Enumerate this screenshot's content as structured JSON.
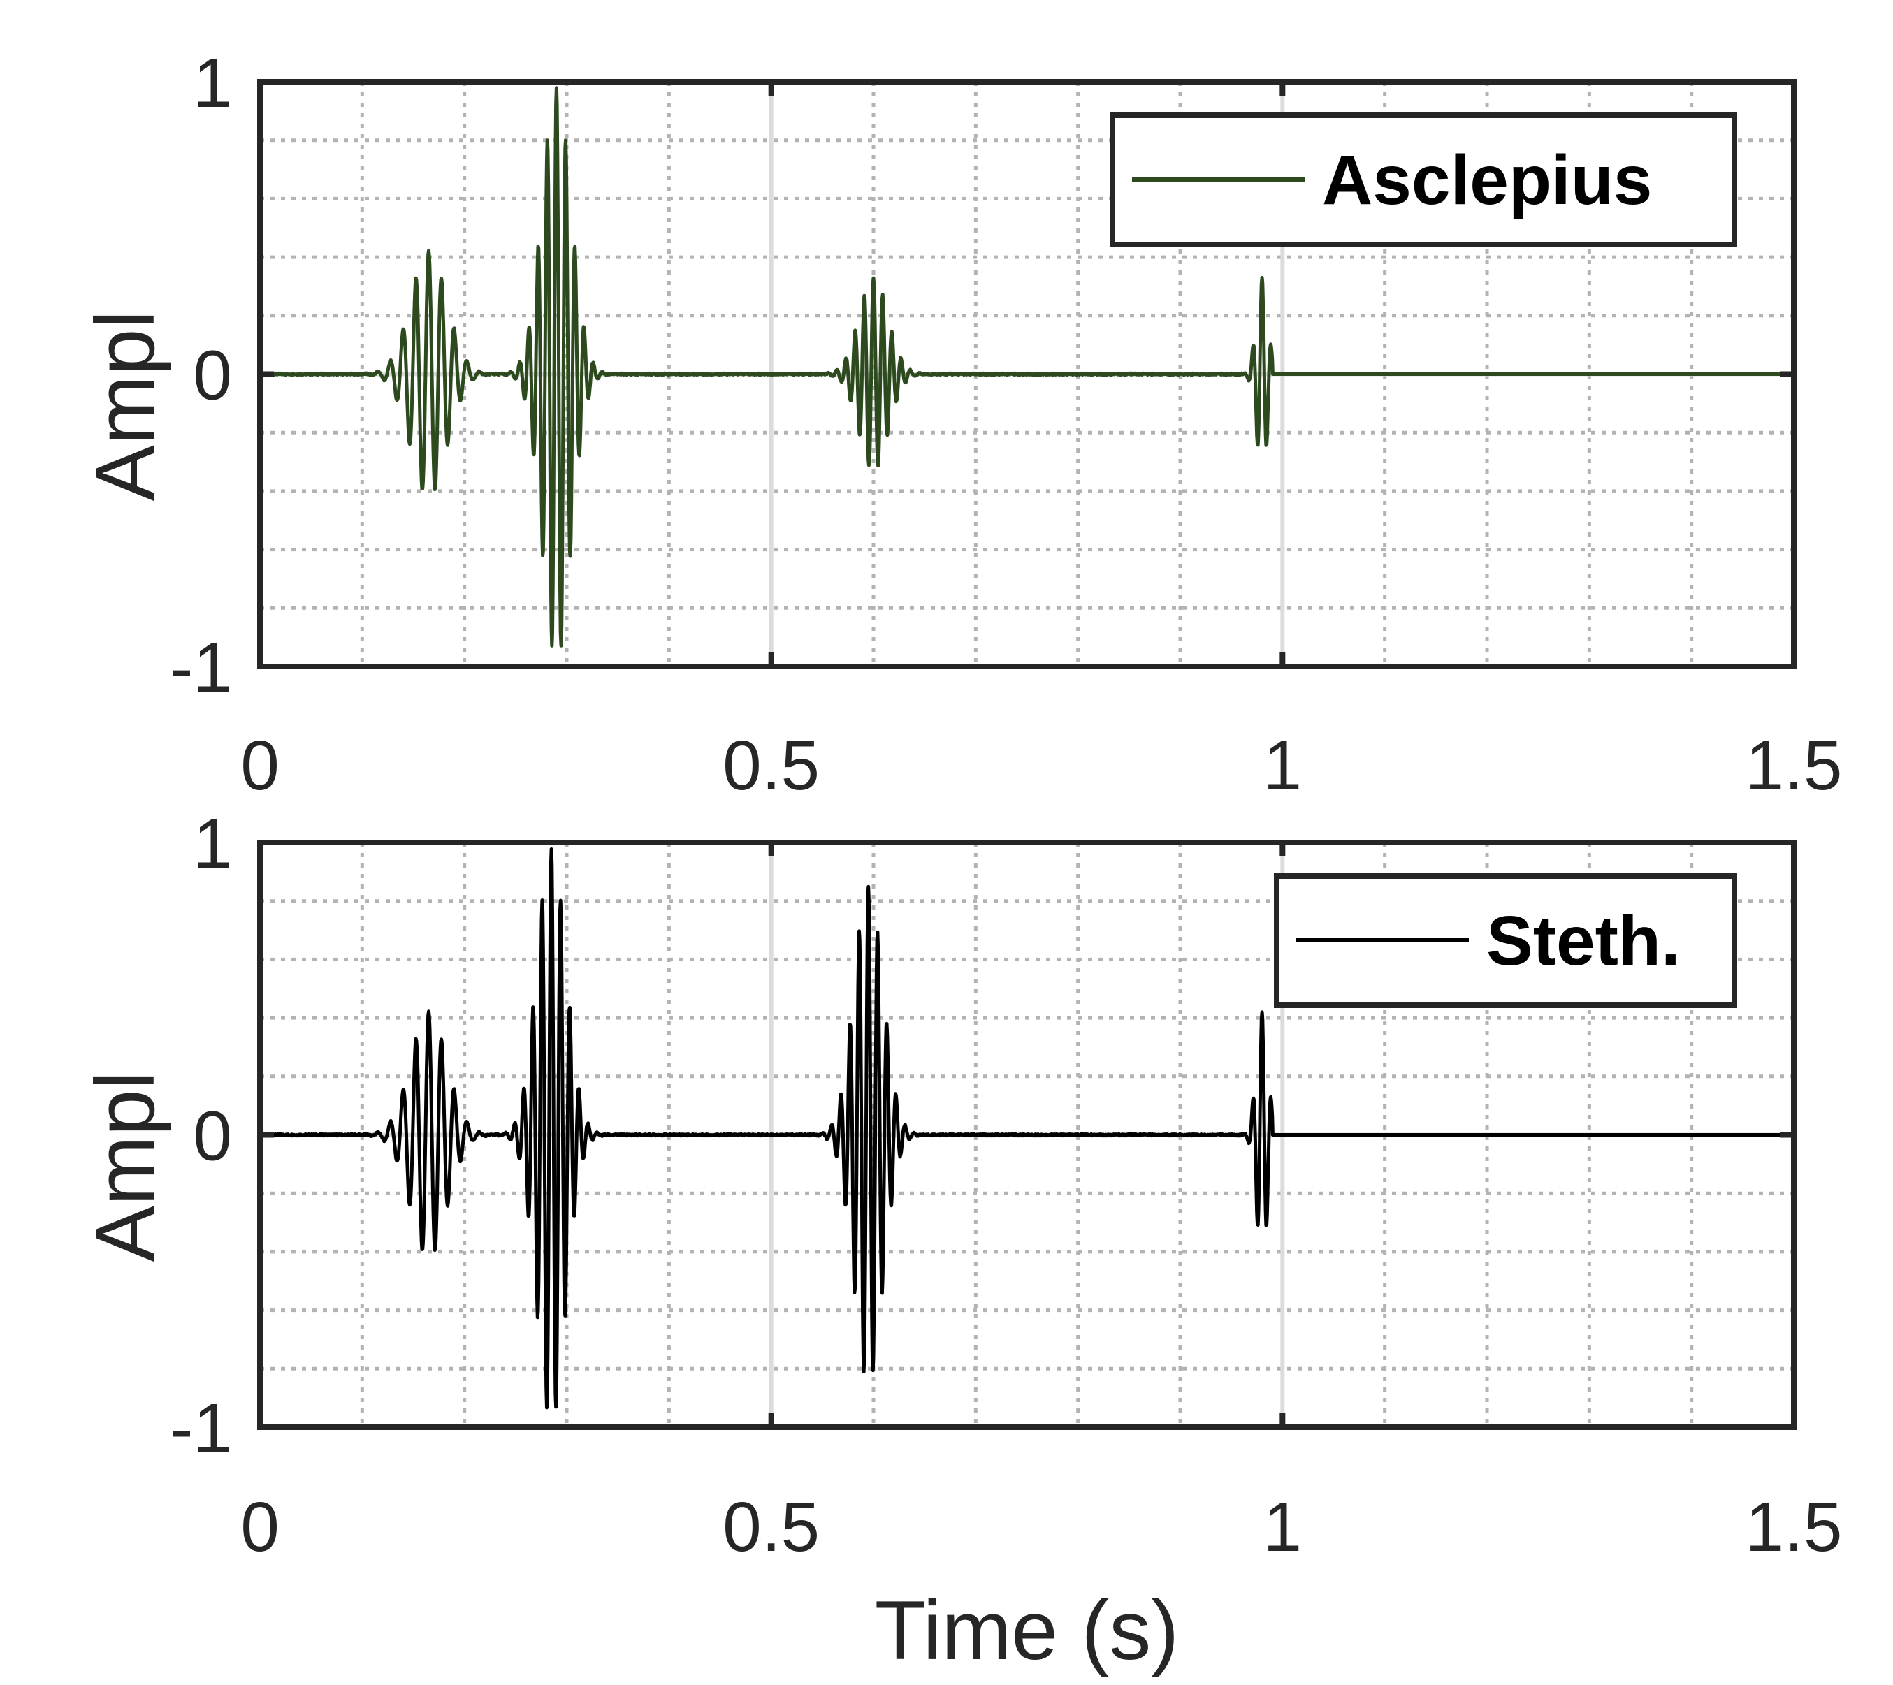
{
  "chart_data": [
    {
      "type": "line",
      "ylabel": "Ampl",
      "xlabel": "",
      "xlim": [
        0,
        1.5
      ],
      "ylim": [
        -1,
        1
      ],
      "xticks": [
        "0",
        "0.5",
        "1",
        "1.5"
      ],
      "yticks": [
        "1",
        "0",
        "-1"
      ],
      "grid": true,
      "minor_grid": true,
      "legend_position": "top-right",
      "series": [
        {
          "name": "Asclepius",
          "color": "#2d4a1e",
          "bursts": [
            {
              "center": 0.165,
              "width": 0.025,
              "amplitude": 0.42,
              "period": 0.0125
            },
            {
              "center": 0.29,
              "width": 0.02,
              "amplitude": 0.98,
              "period": 0.009
            },
            {
              "center": 0.6,
              "width": 0.02,
              "amplitude": 0.33,
              "period": 0.009
            },
            {
              "center": 0.98,
              "width": 0.008,
              "amplitude": 0.33,
              "period": 0.009
            }
          ],
          "end_time": 0.99
        }
      ]
    },
    {
      "type": "line",
      "ylabel": "Ampl",
      "xlabel": "Time (s)",
      "xlim": [
        0,
        1.5
      ],
      "ylim": [
        -1,
        1
      ],
      "xticks": [
        "0",
        "0.5",
        "1",
        "1.5"
      ],
      "yticks": [
        "1",
        "0",
        "-1"
      ],
      "grid": true,
      "minor_grid": true,
      "legend_position": "top-right",
      "series": [
        {
          "name": "Steth.",
          "color": "#000000",
          "bursts": [
            {
              "center": 0.165,
              "width": 0.025,
              "amplitude": 0.42,
              "period": 0.0125
            },
            {
              "center": 0.285,
              "width": 0.02,
              "amplitude": 0.98,
              "period": 0.009
            },
            {
              "center": 0.595,
              "width": 0.02,
              "amplitude": 0.85,
              "period": 0.009
            },
            {
              "center": 0.98,
              "width": 0.008,
              "amplitude": 0.42,
              "period": 0.009
            }
          ],
          "end_time": 0.99
        }
      ]
    }
  ]
}
